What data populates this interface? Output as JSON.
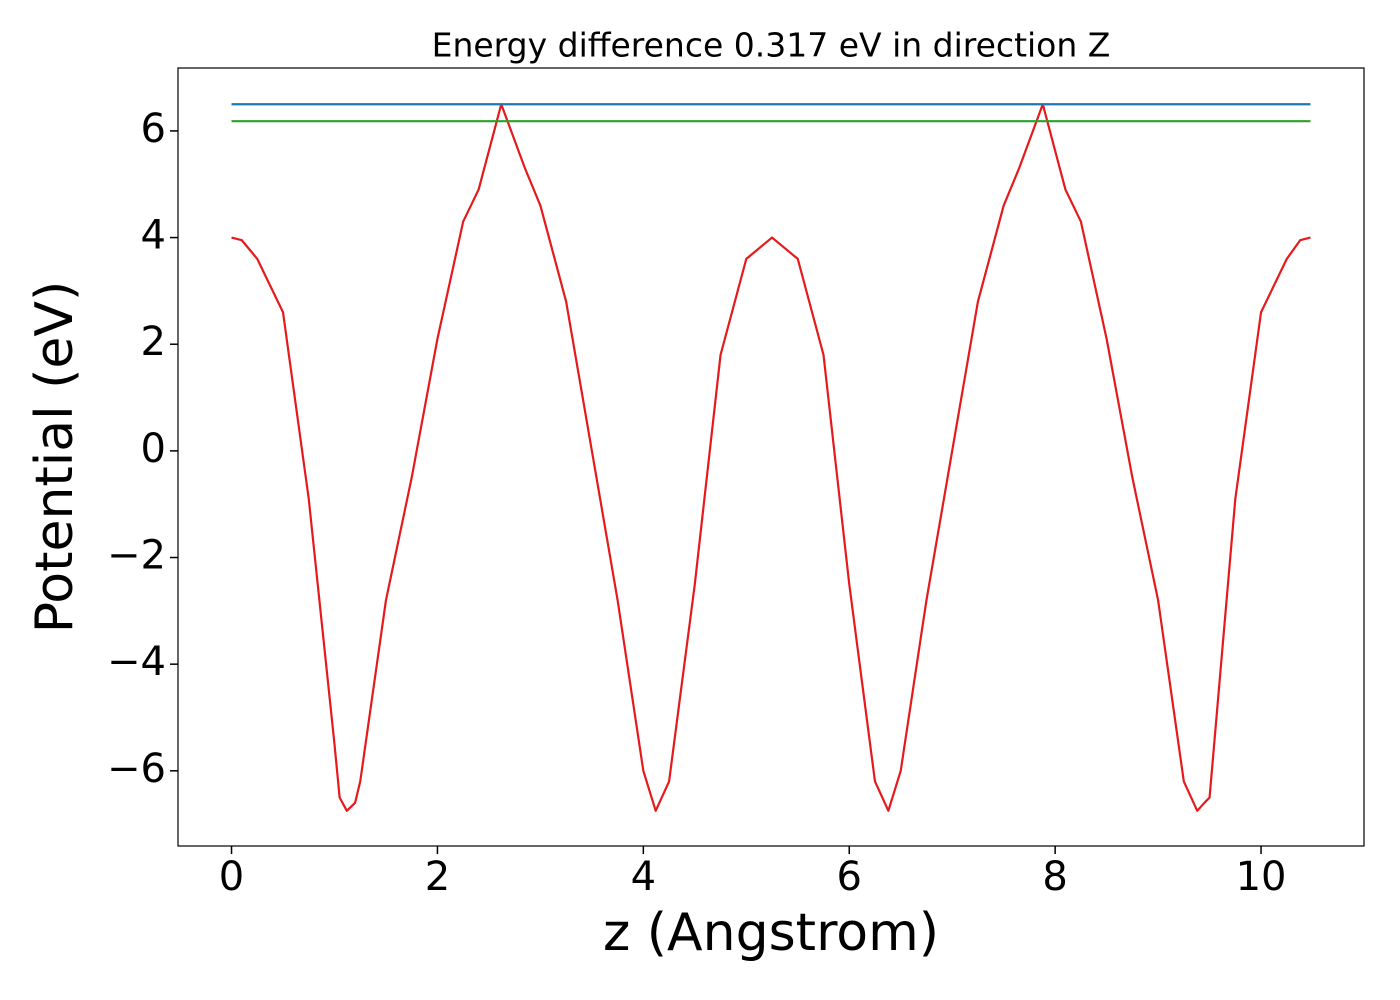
{
  "chart_data": {
    "type": "line",
    "title": "Energy difference 0.317 eV in direction Z",
    "x_label": "z (Angstrom)",
    "y_label": "Potential (eV)",
    "xlim": [
      -0.52,
      11.0
    ],
    "ylim": [
      -7.41,
      7.18
    ],
    "xticks": [
      0,
      2,
      4,
      6,
      8,
      10
    ],
    "yticks": [
      {
        "value": -6,
        "label": "−6"
      },
      {
        "value": -4,
        "label": "−4"
      },
      {
        "value": -2,
        "label": "−2"
      },
      0,
      2,
      4,
      6
    ],
    "grid": false,
    "series": [
      {
        "color": "#e41a1c",
        "x": [
          0,
          0.1,
          0.25,
          0.5,
          0.75,
          1.0,
          1.05,
          1.12,
          1.2,
          1.25,
          1.5,
          1.75,
          2.0,
          2.25,
          2.4,
          2.62,
          2.85,
          3.0,
          3.25,
          3.5,
          3.75,
          4.0,
          4.12,
          4.25,
          4.5,
          4.75,
          5.0,
          5.25,
          5.5,
          5.75,
          6.0,
          6.25,
          6.38,
          6.5,
          6.75,
          7.0,
          7.25,
          7.5,
          7.65,
          7.88,
          8.1,
          8.25,
          8.5,
          8.75,
          9.0,
          9.25,
          9.38,
          9.45,
          9.5,
          9.75,
          10.0,
          10.25,
          10.38,
          10.48
        ],
        "values": [
          4.0,
          3.95,
          3.6,
          2.6,
          -0.9,
          -5.5,
          -6.5,
          -6.75,
          -6.6,
          -6.2,
          -2.8,
          -0.5,
          2.1,
          4.3,
          4.9,
          6.5,
          5.3,
          4.6,
          2.8,
          0,
          -2.8,
          -6.0,
          -6.75,
          -6.2,
          -2.5,
          1.8,
          3.6,
          4.0,
          3.6,
          1.8,
          -2.5,
          -6.2,
          -6.75,
          -6.0,
          -2.8,
          0,
          2.8,
          4.6,
          5.3,
          6.5,
          4.9,
          4.3,
          2.1,
          -0.5,
          -2.8,
          -6.2,
          -6.75,
          -6.6,
          -6.5,
          -0.9,
          2.6,
          3.6,
          3.95,
          4.0
        ]
      },
      {
        "color": "#1f77b4",
        "x": [
          0,
          10.48
        ],
        "values": [
          6.5,
          6.5
        ]
      },
      {
        "color": "#2ca02c",
        "x": [
          0,
          10.48
        ],
        "values": [
          6.183,
          6.183
        ]
      }
    ]
  }
}
